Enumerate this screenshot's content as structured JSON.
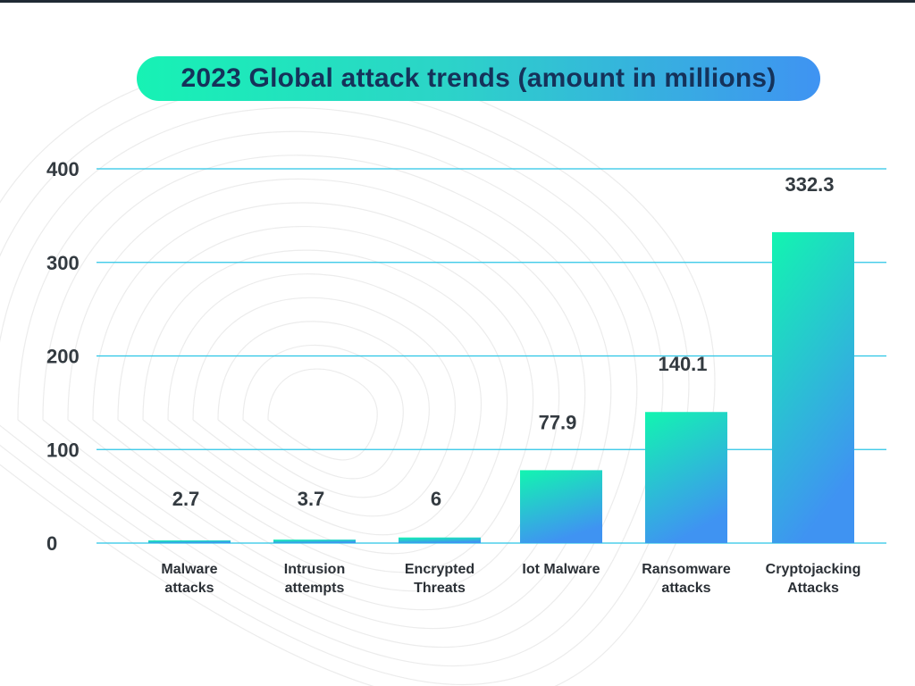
{
  "chart_data": {
    "type": "bar",
    "title": "2023 Global attack trends (amount in millions)",
    "categories": [
      [
        "Malware",
        "attacks"
      ],
      [
        "Intrusion",
        "attempts"
      ],
      [
        "Encrypted",
        "Threats"
      ],
      [
        "Iot Malware"
      ],
      [
        "Ransomware",
        "attacks"
      ],
      [
        "Cryptojacking",
        "Attacks"
      ]
    ],
    "values": [
      2.7,
      3.7,
      6,
      77.9,
      140.1,
      332.3
    ],
    "value_labels": [
      "2.7",
      "3.7",
      "6",
      "77.9",
      "140.1",
      "332.3"
    ],
    "yticks": [
      0,
      100,
      200,
      300,
      400
    ],
    "ylim": [
      0,
      400
    ],
    "xlabel": "",
    "ylabel": "",
    "grid": true,
    "legend": "none"
  },
  "colors": {
    "bar_top": "#12f5b0",
    "bar_bottom": "#3f93f2",
    "gridline": "#29c5e6",
    "title_gradient_start": "#17f2b4",
    "title_gradient_end": "#3f93f2",
    "title_text": "#15325a"
  }
}
